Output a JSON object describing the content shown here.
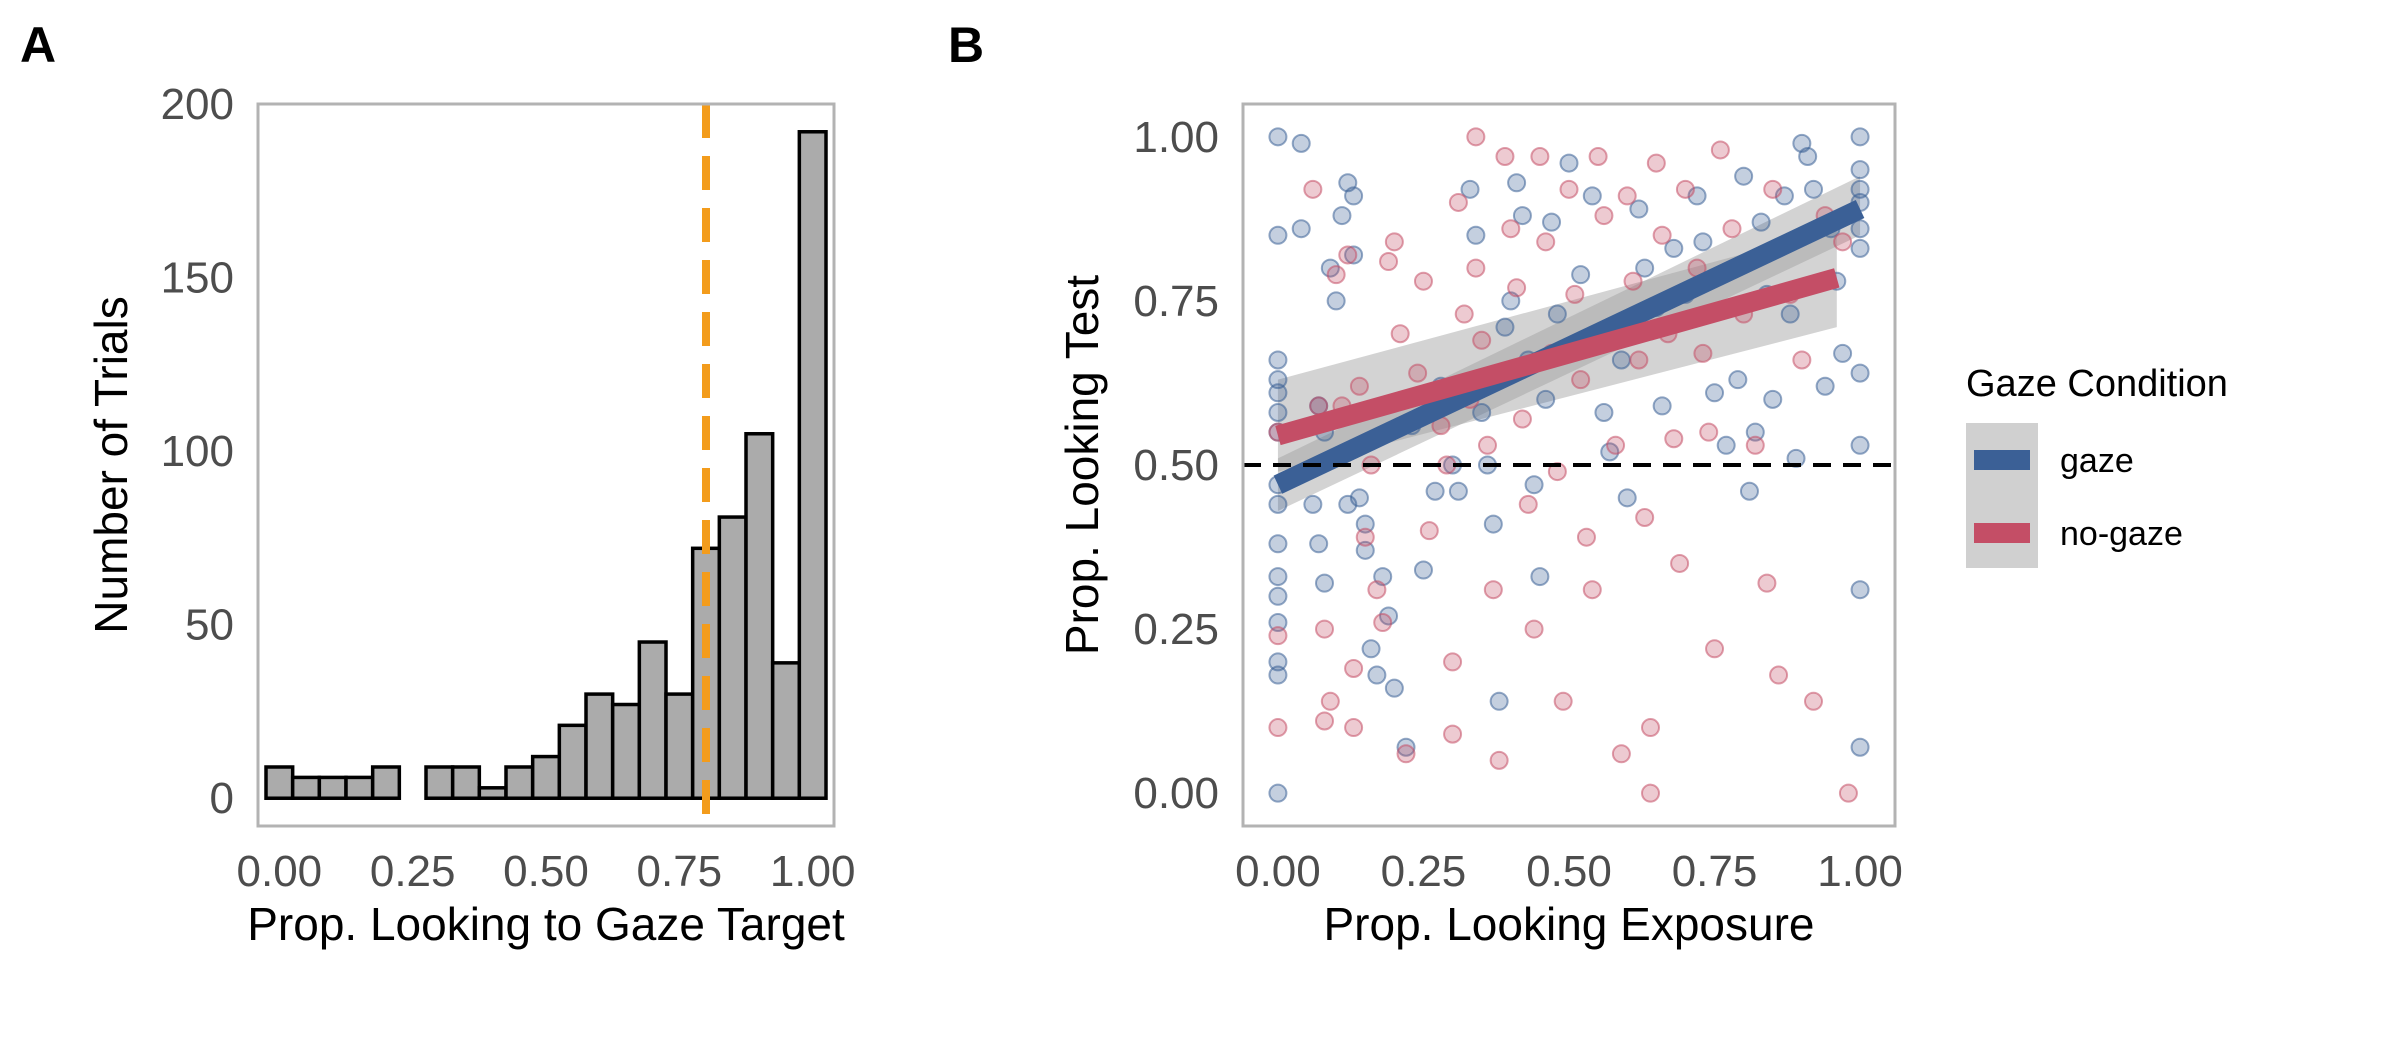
{
  "panel_a_label": "A",
  "panel_b_label": "B",
  "chart_data": [
    {
      "panel": "A",
      "type": "bar",
      "xlabel": "Prop. Looking to Gaze Target",
      "ylabel": "Number of Trials",
      "xlim": [
        -0.04,
        1.04
      ],
      "ylim": [
        -8,
        200
      ],
      "xticks": [
        "0.00",
        "0.25",
        "0.50",
        "0.75",
        "1.00"
      ],
      "yticks": [
        "0",
        "50",
        "100",
        "150",
        "200"
      ],
      "bin_width": 0.05,
      "bins": [
        {
          "x": 0.0,
          "count": 9
        },
        {
          "x": 0.05,
          "count": 6
        },
        {
          "x": 0.1,
          "count": 6
        },
        {
          "x": 0.15,
          "count": 6
        },
        {
          "x": 0.2,
          "count": 9
        },
        {
          "x": 0.25,
          "count": 0
        },
        {
          "x": 0.3,
          "count": 9
        },
        {
          "x": 0.35,
          "count": 9
        },
        {
          "x": 0.4,
          "count": 3
        },
        {
          "x": 0.45,
          "count": 9
        },
        {
          "x": 0.5,
          "count": 12
        },
        {
          "x": 0.55,
          "count": 21
        },
        {
          "x": 0.6,
          "count": 30
        },
        {
          "x": 0.65,
          "count": 27
        },
        {
          "x": 0.7,
          "count": 45
        },
        {
          "x": 0.75,
          "count": 30
        },
        {
          "x": 0.8,
          "count": 72
        },
        {
          "x": 0.85,
          "count": 81
        },
        {
          "x": 0.9,
          "count": 105
        },
        {
          "x": 0.95,
          "count": 39
        },
        {
          "x": 1.0,
          "count": 192
        }
      ],
      "reference_line": {
        "x": 0.8,
        "color": "#f39c1c",
        "style": "dashed"
      },
      "bar_color": "#ababab",
      "grid": false
    },
    {
      "panel": "B",
      "type": "scatter",
      "xlabel": "Prop. Looking Exposure",
      "ylabel": "Prop. Looking Test",
      "xlim": [
        -0.06,
        1.06
      ],
      "ylim": [
        -0.05,
        1.05
      ],
      "xticks": [
        "0.00",
        "0.25",
        "0.50",
        "0.75",
        "1.00"
      ],
      "yticks": [
        "0.00",
        "0.25",
        "0.50",
        "0.75",
        "1.00"
      ],
      "reference_line": {
        "y": 0.5,
        "color": "#000000",
        "style": "dashed"
      },
      "legend": {
        "title": "Gaze Condition",
        "placement": "right",
        "items": [
          {
            "label": "gaze",
            "color": "#3b6096"
          },
          {
            "label": "no-gaze",
            "color": "#c44e66"
          }
        ]
      },
      "series": [
        {
          "name": "gaze",
          "color": "#3b6096",
          "fit": {
            "x0": 0.0,
            "y0": 0.47,
            "x1": 1.0,
            "y1": 0.89,
            "ci_start": [
              0.43,
              0.51
            ],
            "ci_end": [
              0.85,
              0.94
            ]
          },
          "points": [
            [
              0,
              1
            ],
            [
              0,
              0.85
            ],
            [
              0,
              0.66
            ],
            [
              0,
              0.63
            ],
            [
              0,
              0.61
            ],
            [
              0,
              0.58
            ],
            [
              0,
              0.55
            ],
            [
              0,
              0.47
            ],
            [
              0,
              0.44
            ],
            [
              0,
              0.38
            ],
            [
              0,
              0.33
            ],
            [
              0,
              0.3
            ],
            [
              0,
              0.26
            ],
            [
              0,
              0.2
            ],
            [
              0,
              0.18
            ],
            [
              0,
              0
            ],
            [
              0.04,
              0.99
            ],
            [
              0.04,
              0.86
            ],
            [
              0.06,
              0.44
            ],
            [
              0.07,
              0.59
            ],
            [
              0.08,
              0.55
            ],
            [
              0.07,
              0.38
            ],
            [
              0.08,
              0.32
            ],
            [
              0.09,
              0.8
            ],
            [
              0.1,
              0.75
            ],
            [
              0.11,
              0.88
            ],
            [
              0.12,
              0.93
            ],
            [
              0.13,
              0.91
            ],
            [
              0.13,
              0.82
            ],
            [
              0.12,
              0.44
            ],
            [
              0.14,
              0.45
            ],
            [
              0.15,
              0.41
            ],
            [
              0.15,
              0.37
            ],
            [
              0.16,
              0.22
            ],
            [
              0.17,
              0.18
            ],
            [
              0.18,
              0.33
            ],
            [
              0.19,
              0.27
            ],
            [
              0.2,
              0.16
            ],
            [
              0.22,
              0.07
            ],
            [
              0.23,
              0.56
            ],
            [
              0.25,
              0.34
            ],
            [
              0.27,
              0.46
            ],
            [
              0.28,
              0.62
            ],
            [
              0.3,
              0.5
            ],
            [
              0.31,
              0.46
            ],
            [
              0.33,
              0.92
            ],
            [
              0.34,
              0.85
            ],
            [
              0.35,
              0.58
            ],
            [
              0.36,
              0.5
            ],
            [
              0.37,
              0.41
            ],
            [
              0.38,
              0.14
            ],
            [
              0.39,
              0.71
            ],
            [
              0.4,
              0.75
            ],
            [
              0.41,
              0.93
            ],
            [
              0.42,
              0.88
            ],
            [
              0.43,
              0.66
            ],
            [
              0.44,
              0.47
            ],
            [
              0.45,
              0.33
            ],
            [
              0.46,
              0.6
            ],
            [
              0.47,
              0.87
            ],
            [
              0.48,
              0.73
            ],
            [
              0.5,
              0.96
            ],
            [
              0.52,
              0.79
            ],
            [
              0.54,
              0.91
            ],
            [
              0.56,
              0.58
            ],
            [
              0.57,
              0.52
            ],
            [
              0.59,
              0.66
            ],
            [
              0.6,
              0.45
            ],
            [
              0.62,
              0.89
            ],
            [
              0.63,
              0.8
            ],
            [
              0.65,
              0.74
            ],
            [
              0.66,
              0.59
            ],
            [
              0.68,
              0.83
            ],
            [
              0.7,
              0.76
            ],
            [
              0.72,
              0.91
            ],
            [
              0.73,
              0.84
            ],
            [
              0.75,
              0.61
            ],
            [
              0.77,
              0.53
            ],
            [
              0.79,
              0.63
            ],
            [
              0.8,
              0.94
            ],
            [
              0.81,
              0.46
            ],
            [
              0.82,
              0.55
            ],
            [
              0.83,
              0.87
            ],
            [
              0.84,
              0.76
            ],
            [
              0.85,
              0.6
            ],
            [
              0.87,
              0.91
            ],
            [
              0.88,
              0.73
            ],
            [
              0.89,
              0.51
            ],
            [
              0.9,
              0.99
            ],
            [
              0.91,
              0.97
            ],
            [
              0.92,
              0.92
            ],
            [
              0.94,
              0.62
            ],
            [
              0.95,
              0.86
            ],
            [
              0.96,
              0.78
            ],
            [
              0.97,
              0.67
            ],
            [
              1,
              1
            ],
            [
              1,
              0.95
            ],
            [
              1,
              0.92
            ],
            [
              1,
              0.9
            ],
            [
              1,
              0.86
            ],
            [
              1,
              0.83
            ],
            [
              1,
              0.64
            ],
            [
              1,
              0.53
            ],
            [
              1,
              0.31
            ],
            [
              1,
              0.07
            ]
          ]
        },
        {
          "name": "no-gaze",
          "color": "#c44e66",
          "fit": {
            "x0": 0.0,
            "y0": 0.545,
            "x1": 0.96,
            "y1": 0.785,
            "ci_start": [
              0.49,
              0.63
            ],
            "ci_end": [
              0.71,
              0.86
            ]
          },
          "points": [
            [
              0,
              0.55
            ],
            [
              0,
              0.24
            ],
            [
              0,
              0.1
            ],
            [
              0.06,
              0.92
            ],
            [
              0.07,
              0.59
            ],
            [
              0.08,
              0.25
            ],
            [
              0.08,
              0.11
            ],
            [
              0.09,
              0.14
            ],
            [
              0.1,
              0.79
            ],
            [
              0.11,
              0.59
            ],
            [
              0.12,
              0.82
            ],
            [
              0.13,
              0.19
            ],
            [
              0.13,
              0.1
            ],
            [
              0.14,
              0.62
            ],
            [
              0.15,
              0.39
            ],
            [
              0.16,
              0.5
            ],
            [
              0.17,
              0.31
            ],
            [
              0.18,
              0.26
            ],
            [
              0.19,
              0.81
            ],
            [
              0.2,
              0.84
            ],
            [
              0.21,
              0.7
            ],
            [
              0.22,
              0.06
            ],
            [
              0.24,
              0.64
            ],
            [
              0.25,
              0.78
            ],
            [
              0.26,
              0.4
            ],
            [
              0.28,
              0.56
            ],
            [
              0.29,
              0.5
            ],
            [
              0.3,
              0.2
            ],
            [
              0.3,
              0.09
            ],
            [
              0.31,
              0.9
            ],
            [
              0.32,
              0.73
            ],
            [
              0.33,
              0.6
            ],
            [
              0.34,
              1
            ],
            [
              0.34,
              0.8
            ],
            [
              0.35,
              0.69
            ],
            [
              0.36,
              0.53
            ],
            [
              0.37,
              0.31
            ],
            [
              0.38,
              0.05
            ],
            [
              0.39,
              0.97
            ],
            [
              0.4,
              0.86
            ],
            [
              0.41,
              0.77
            ],
            [
              0.42,
              0.57
            ],
            [
              0.43,
              0.44
            ],
            [
              0.44,
              0.25
            ],
            [
              0.45,
              0.97
            ],
            [
              0.46,
              0.84
            ],
            [
              0.47,
              0.67
            ],
            [
              0.48,
              0.49
            ],
            [
              0.49,
              0.14
            ],
            [
              0.5,
              0.92
            ],
            [
              0.51,
              0.76
            ],
            [
              0.52,
              0.63
            ],
            [
              0.53,
              0.39
            ],
            [
              0.54,
              0.31
            ],
            [
              0.55,
              0.97
            ],
            [
              0.56,
              0.88
            ],
            [
              0.57,
              0.71
            ],
            [
              0.58,
              0.53
            ],
            [
              0.59,
              0.06
            ],
            [
              0.6,
              0.91
            ],
            [
              0.61,
              0.78
            ],
            [
              0.62,
              0.66
            ],
            [
              0.63,
              0.42
            ],
            [
              0.64,
              0.1
            ],
            [
              0.64,
              0
            ],
            [
              0.65,
              0.96
            ],
            [
              0.66,
              0.85
            ],
            [
              0.67,
              0.7
            ],
            [
              0.68,
              0.54
            ],
            [
              0.69,
              0.35
            ],
            [
              0.7,
              0.92
            ],
            [
              0.72,
              0.8
            ],
            [
              0.73,
              0.67
            ],
            [
              0.74,
              0.55
            ],
            [
              0.75,
              0.22
            ],
            [
              0.76,
              0.98
            ],
            [
              0.78,
              0.86
            ],
            [
              0.8,
              0.73
            ],
            [
              0.82,
              0.53
            ],
            [
              0.84,
              0.32
            ],
            [
              0.85,
              0.92
            ],
            [
              0.86,
              0.18
            ],
            [
              0.88,
              0.76
            ],
            [
              0.9,
              0.66
            ],
            [
              0.92,
              0.14
            ],
            [
              0.94,
              0.88
            ],
            [
              0.97,
              0.84
            ],
            [
              0.98,
              0
            ]
          ]
        }
      ],
      "grid": false
    }
  ]
}
